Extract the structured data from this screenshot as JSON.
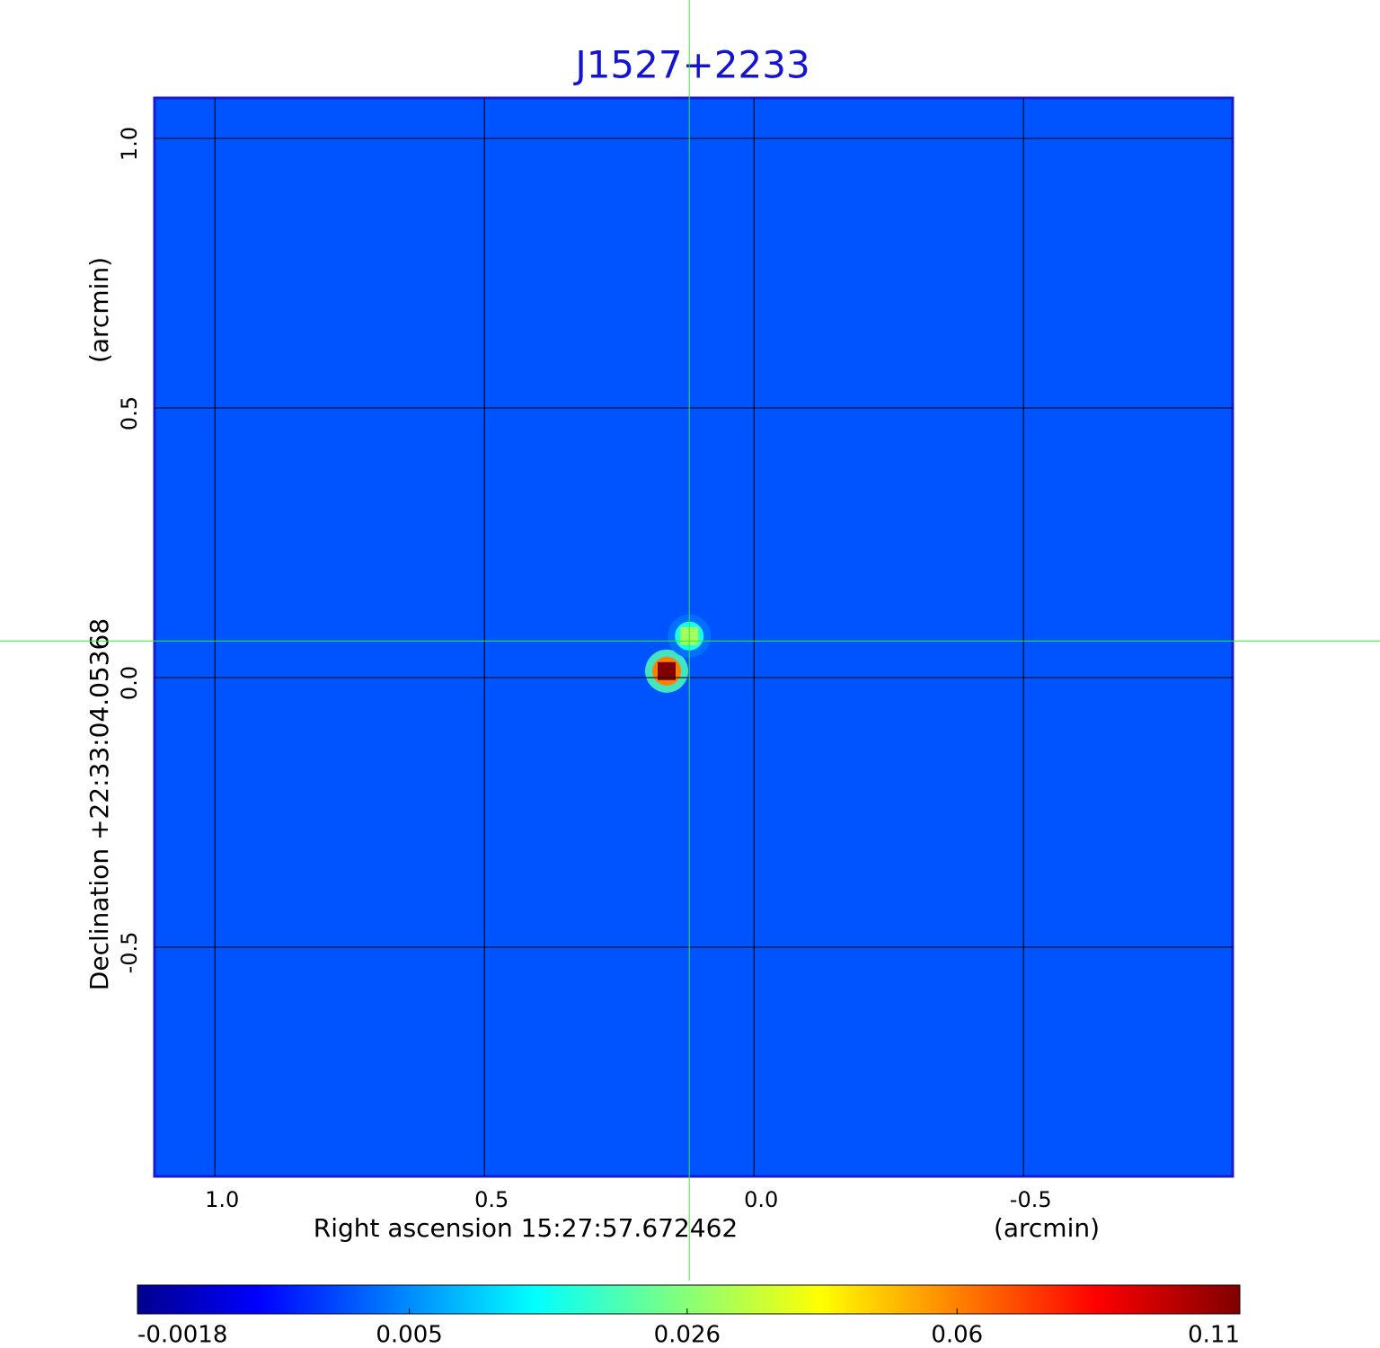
{
  "chart_data": {
    "type": "image",
    "title": "J1527+2233",
    "xlabel": "Right ascension  15:27:57.672462",
    "xunit": "(arcmin)",
    "ylabel": "Declination  +22:33:04.05368",
    "yunit": "(arcmin)",
    "xlim": [
      1.112,
      -0.888
    ],
    "ylim": [
      -0.925,
      1.075
    ],
    "xticks": [
      {
        "value": 1,
        "label": "1.0"
      },
      0.5,
      {
        "value": 0,
        "label": "0.0"
      },
      -0.5
    ],
    "yticks": [
      {
        "value": 1,
        "label": "1.0"
      },
      0.5,
      {
        "value": 0,
        "label": "0.0"
      },
      -0.5
    ],
    "grid": true,
    "colormap": "jet",
    "color_scale": "sqrt",
    "clim": [
      -0.0018,
      0.11
    ],
    "cticks": [
      -0.0018,
      0.005,
      0.026,
      0.06,
      0.11
    ],
    "background": 0.003,
    "peaks": {
      "x": [
        0.162,
        0.12
      ],
      "y": [
        0.012,
        0.077
      ],
      "values": [
        0.11,
        0.03
      ]
    },
    "crosshair": {
      "x": 0.12,
      "y": 0.068
    }
  }
}
